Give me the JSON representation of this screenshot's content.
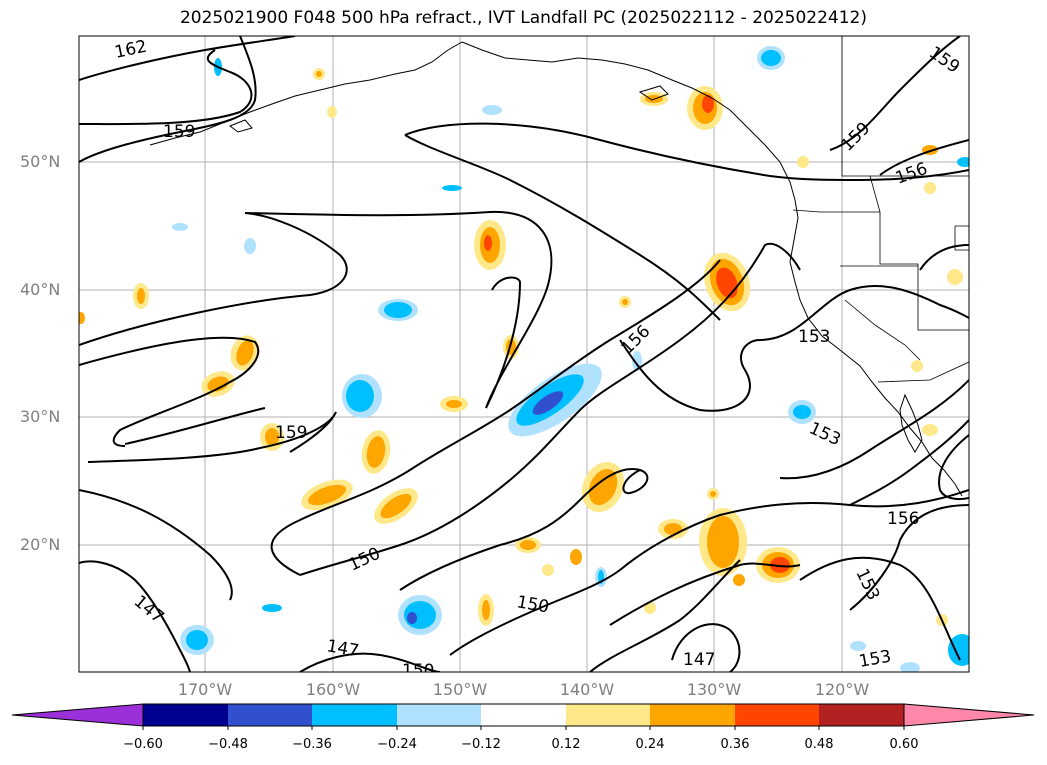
{
  "title": "2025021900 F048 500 hPa refract., IVT Landfall PC (2025022112 - 2025022412)",
  "lat_labels": [
    "50°N",
    "40°N",
    "30°N",
    "20°N"
  ],
  "lon_labels": [
    "170°W",
    "160°W",
    "150°W",
    "140°W",
    "130°W",
    "120°W"
  ],
  "contour_labels": [
    "162",
    "159",
    "159",
    "159",
    "156",
    "159",
    "156",
    "153",
    "153",
    "153",
    "150",
    "150",
    "147",
    "147",
    "147",
    "150",
    "156",
    "153"
  ],
  "colorbar": {
    "ticks": [
      "−0.60",
      "−0.48",
      "−0.36",
      "−0.24",
      "−0.12",
      "0.12",
      "0.24",
      "0.36",
      "0.48",
      "0.60"
    ],
    "colors": [
      "#9b30d9",
      "#000090",
      "#3050d0",
      "#00bfff",
      "#b0e2ff",
      "#ffffff",
      "#ffe88a",
      "#ffa500",
      "#ff4500",
      "#b22222",
      "#ff88aa"
    ]
  }
}
